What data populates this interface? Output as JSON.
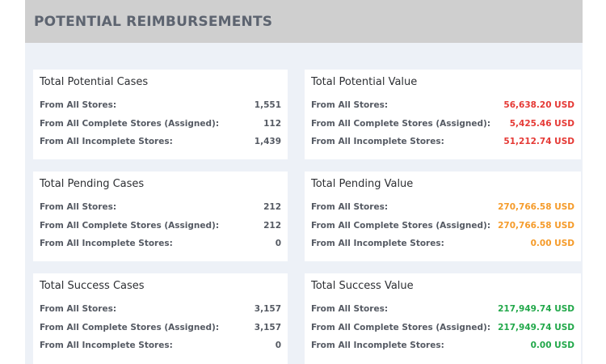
{
  "header": {
    "title": "POTENTIAL REIMBURSEMENTS"
  },
  "labels": {
    "all": "From All Stores:",
    "complete": "From All Complete Stores (Assigned):",
    "incomplete": "From All Incomplete Stores:"
  },
  "colors": {
    "red": "#e53935",
    "orange": "#f59b2a",
    "green": "#22a84a"
  },
  "cards": {
    "potential_cases": {
      "title": "Total Potential Cases",
      "all": "1,551",
      "complete": "112",
      "incomplete": "1,439"
    },
    "potential_value": {
      "title": "Total Potential Value",
      "all": "56,638.20 USD",
      "complete": "5,425.46 USD",
      "incomplete": "51,212.74 USD"
    },
    "pending_cases": {
      "title": "Total Pending Cases",
      "all": "212",
      "complete": "212",
      "incomplete": "0"
    },
    "pending_value": {
      "title": "Total Pending Value",
      "all": "270,766.58 USD",
      "complete": "270,766.58 USD",
      "incomplete": "0.00 USD"
    },
    "success_cases": {
      "title": "Total Success Cases",
      "all": "3,157",
      "complete": "3,157",
      "incomplete": "0"
    },
    "success_value": {
      "title": "Total Success Value",
      "all": "217,949.74 USD",
      "complete": "217,949.74 USD",
      "incomplete": "0.00 USD"
    }
  }
}
